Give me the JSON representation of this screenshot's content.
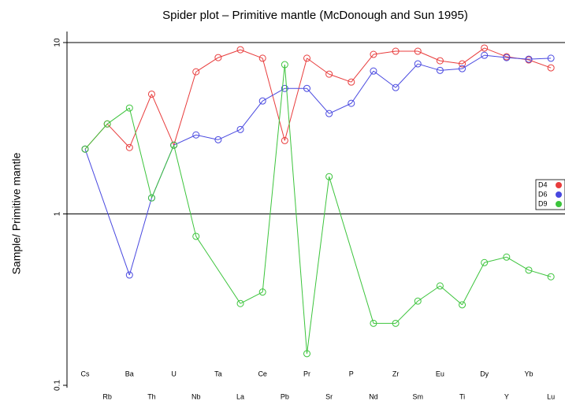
{
  "chart_data": {
    "type": "line",
    "title": "Spider plot – Primitive mantle (McDonough  and  Sun 1995)",
    "y_label": "Sample/ Primitive mantle",
    "log_scale_y": true,
    "ylim": [
      0.1,
      10
    ],
    "yticks": [
      0.1,
      1,
      10
    ],
    "reference_lines": [
      1,
      10
    ],
    "legend_position": "right",
    "categories": [
      "Cs",
      "Rb",
      "Ba",
      "Th",
      "U",
      "Nb",
      "Ta",
      "La",
      "Ce",
      "Pb",
      "Pr",
      "Sr",
      "P",
      "Nd",
      "Zr",
      "Sm",
      "Eu",
      "Ti",
      "Dy",
      "Y",
      "Yb",
      "Lu"
    ],
    "series": [
      {
        "name": "D4",
        "color": "#e83c3c",
        "values": [
          2.39,
          3.35,
          2.44,
          5.0,
          2.52,
          6.75,
          8.17,
          9.08,
          8.1,
          2.68,
          8.1,
          6.54,
          5.88,
          8.53,
          8.9,
          8.9,
          7.83,
          7.51,
          9.29,
          8.26,
          7.92,
          7.12
        ]
      },
      {
        "name": "D6",
        "color": "#4848e0",
        "values": [
          2.39,
          null,
          0.44,
          1.24,
          2.52,
          2.89,
          2.71,
          3.11,
          4.56,
          5.4,
          5.4,
          3.85,
          4.42,
          6.82,
          5.46,
          7.51,
          6.88,
          7.04,
          8.43,
          8.17,
          8.0,
          8.1
        ]
      },
      {
        "name": "D9",
        "color": "#3cc43c",
        "values": [
          2.39,
          3.35,
          4.15,
          1.24,
          2.52,
          0.74,
          null,
          0.3,
          0.35,
          7.43,
          0.153,
          1.65,
          null,
          0.23,
          0.23,
          0.31,
          0.38,
          0.295,
          0.52,
          0.56,
          0.47,
          0.43
        ]
      }
    ]
  }
}
